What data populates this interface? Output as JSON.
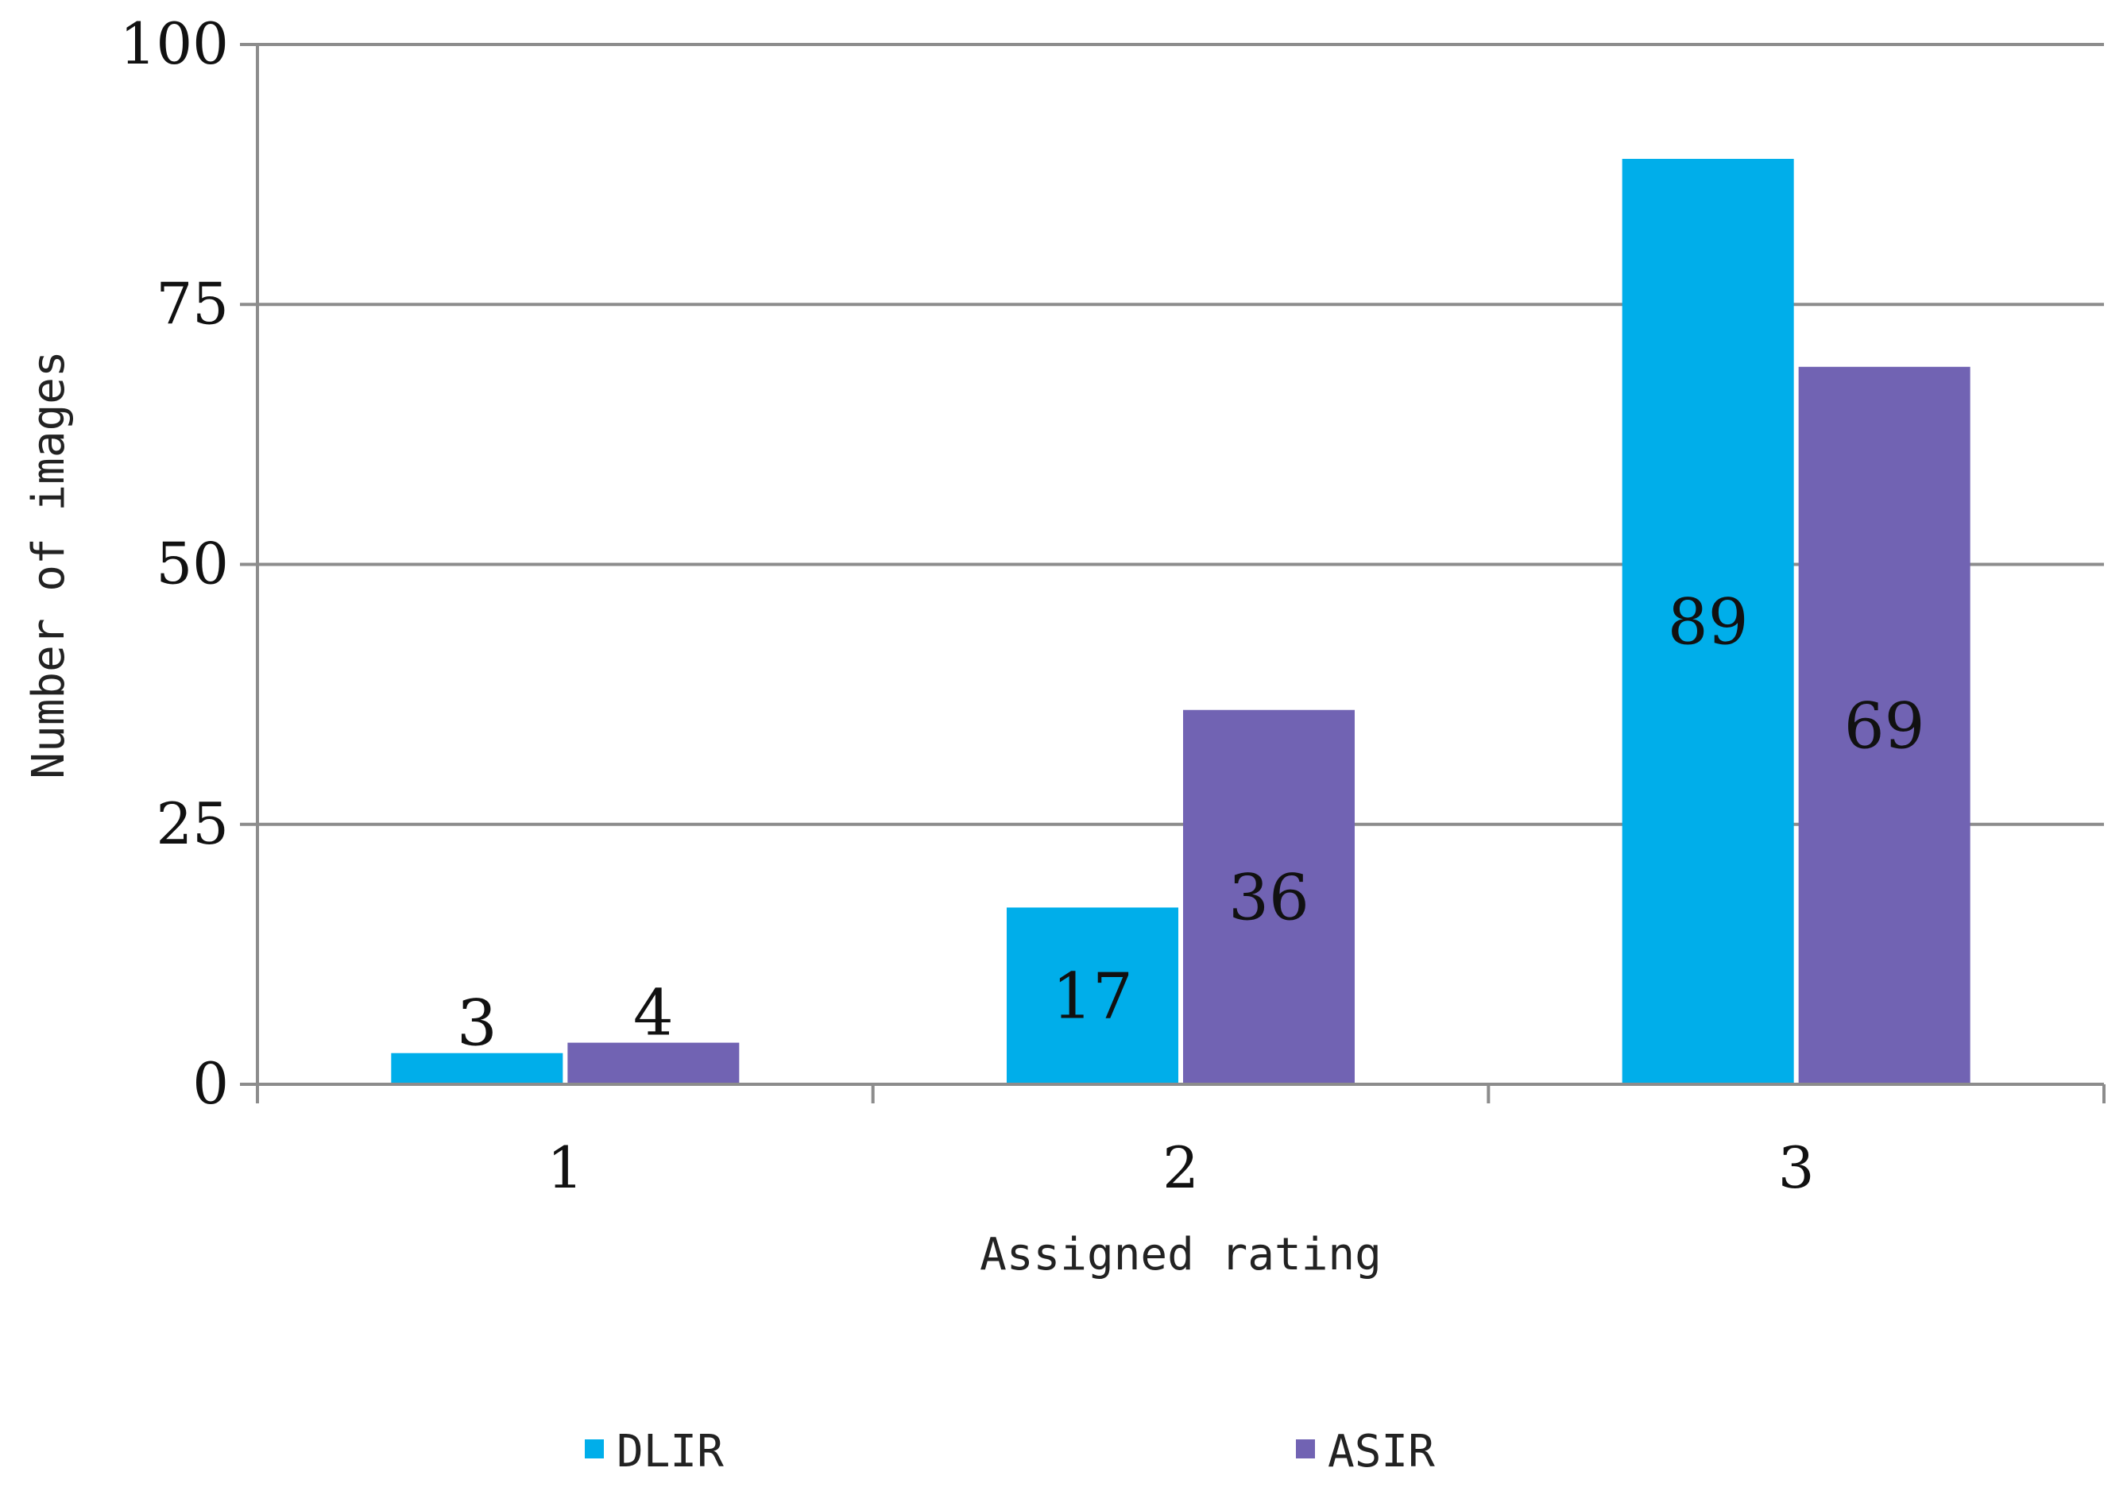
{
  "chart_data": {
    "type": "bar",
    "categories": [
      "1",
      "2",
      "3"
    ],
    "series": [
      {
        "name": "DLIR",
        "values": [
          3,
          17,
          89
        ],
        "color": "#00AEEA"
      },
      {
        "name": "ASIR",
        "values": [
          4,
          36,
          69
        ],
        "color": "#7163B3"
      }
    ],
    "xlabel": "Assigned rating",
    "ylabel": "Number of images",
    "ylim": [
      0,
      100
    ],
    "yticks": [
      0,
      25,
      50,
      75,
      100
    ],
    "grid": true,
    "legend_position": "bottom",
    "data_labels": true
  }
}
